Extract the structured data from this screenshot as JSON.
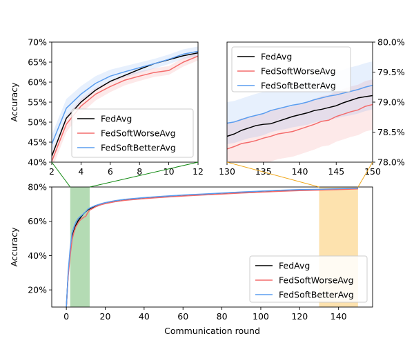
{
  "colors": {
    "fedavg": "#000000",
    "worse": "#f46b6b",
    "better": "#5b9def",
    "worse_band": "#f7b0b0",
    "better_band": "#b9d2f7",
    "green_span": "#b4dbb4",
    "orange_span": "#fde2ae",
    "green_connector": "#138a13",
    "orange_connector": "#f0a81c"
  },
  "chart_data": [
    {
      "id": "zoom-early",
      "type": "line",
      "title": "",
      "xlabel": "",
      "ylabel": "Accuracy",
      "xlim": [
        2,
        12
      ],
      "ylim": [
        40,
        70
      ],
      "xticks": [
        "2",
        "4",
        "6",
        "8",
        "10",
        "12"
      ],
      "yticks": [
        "40%",
        "45%",
        "50%",
        "55%",
        "60%",
        "65%",
        "70%"
      ],
      "legend_position": "lower-right",
      "x": [
        2,
        3,
        4,
        5,
        6,
        7,
        8,
        9,
        10,
        11,
        12
      ],
      "series": [
        {
          "name": "FedAvg",
          "color_key": "fedavg",
          "values": [
            41.5,
            51.0,
            55.0,
            58.0,
            60.2,
            61.7,
            63.2,
            64.6,
            65.6,
            66.6,
            67.3
          ],
          "band": null
        },
        {
          "name": "FedSoftWorseAvg",
          "color_key": "worse",
          "values": [
            40.2,
            49.5,
            54.0,
            57.0,
            58.9,
            60.5,
            61.5,
            62.4,
            62.9,
            65.0,
            66.5
          ],
          "band": [
            2.0,
            2.0,
            1.8,
            1.6,
            1.4,
            1.3,
            1.2,
            1.1,
            1.1,
            1.1,
            1.1
          ]
        },
        {
          "name": "FedSoftBetterAvg",
          "color_key": "better",
          "values": [
            44.5,
            53.5,
            57.0,
            59.7,
            61.5,
            62.6,
            63.6,
            64.6,
            65.7,
            67.0,
            67.7
          ],
          "band": [
            2.3,
            2.3,
            2.0,
            1.8,
            1.6,
            1.4,
            1.3,
            1.2,
            1.2,
            1.2,
            1.2
          ]
        }
      ]
    },
    {
      "id": "zoom-late",
      "type": "line",
      "title": "",
      "xlabel": "",
      "ylabel": "",
      "xlim": [
        130,
        150
      ],
      "ylim": [
        78.0,
        80.0
      ],
      "xticks": [
        "130",
        "135",
        "140",
        "145",
        "150"
      ],
      "yticks": [
        "78.0%",
        "78.5%",
        "79.0%",
        "79.5%",
        "80.0%"
      ],
      "legend_position": "upper-left",
      "x": [
        130,
        131,
        132,
        133,
        134,
        135,
        136,
        137,
        138,
        139,
        140,
        141,
        142,
        143,
        144,
        145,
        146,
        147,
        148,
        149,
        150
      ],
      "series": [
        {
          "name": "FedAvg",
          "color_key": "fedavg",
          "values": [
            78.43,
            78.47,
            78.53,
            78.57,
            78.61,
            78.63,
            78.64,
            78.68,
            78.72,
            78.76,
            78.79,
            78.82,
            78.86,
            78.88,
            78.91,
            78.94,
            78.99,
            79.03,
            79.07,
            79.09,
            79.11
          ],
          "band": null
        },
        {
          "name": "FedSoftWorseAvg",
          "color_key": "worse",
          "values": [
            78.22,
            78.26,
            78.31,
            78.33,
            78.36,
            78.4,
            78.43,
            78.47,
            78.49,
            78.51,
            78.55,
            78.59,
            78.63,
            78.68,
            78.7,
            78.76,
            78.8,
            78.84,
            78.87,
            78.93,
            78.96
          ],
          "band": [
            0.42,
            0.42,
            0.42,
            0.42,
            0.42,
            0.42,
            0.42,
            0.42,
            0.42,
            0.42,
            0.42,
            0.42,
            0.42,
            0.42,
            0.42,
            0.42,
            0.42,
            0.42,
            0.42,
            0.42,
            0.42
          ]
        },
        {
          "name": "FedSoftBetterAvg",
          "color_key": "better",
          "values": [
            78.65,
            78.67,
            78.71,
            78.75,
            78.78,
            78.81,
            78.86,
            78.89,
            78.92,
            78.95,
            78.97,
            79.0,
            79.04,
            79.07,
            79.1,
            79.12,
            79.15,
            79.18,
            79.21,
            79.25,
            79.28
          ],
          "band": [
            0.35,
            0.35,
            0.35,
            0.35,
            0.36,
            0.36,
            0.36,
            0.36,
            0.37,
            0.37,
            0.37,
            0.38,
            0.38,
            0.38,
            0.39,
            0.39,
            0.39,
            0.4,
            0.4,
            0.4,
            0.4
          ]
        }
      ]
    },
    {
      "id": "full",
      "type": "line",
      "title": "",
      "xlabel": "Communication round",
      "ylabel": "Accuracy",
      "xlim": [
        -7.5,
        157.5
      ],
      "ylim": [
        10,
        80
      ],
      "xticks": [
        "0",
        "20",
        "40",
        "60",
        "80",
        "100",
        "120",
        "140"
      ],
      "xtick_values": [
        0,
        20,
        40,
        60,
        80,
        100,
        120,
        140
      ],
      "yticks": [
        "20%",
        "40%",
        "60%",
        "80%"
      ],
      "ytick_values": [
        20,
        40,
        60,
        80
      ],
      "legend_position": "lower-right",
      "highlight_spans": [
        {
          "from": 2,
          "to": 12,
          "color_key": "green_span"
        },
        {
          "from": 130,
          "to": 150,
          "color_key": "orange_span"
        }
      ],
      "x": [
        0,
        1,
        2,
        3,
        4,
        5,
        6,
        7,
        8,
        9,
        10,
        11,
        12,
        15,
        18,
        20,
        25,
        30,
        40,
        50,
        60,
        70,
        80,
        90,
        100,
        110,
        120,
        130,
        140,
        150
      ],
      "series": [
        {
          "name": "FedAvg",
          "color_key": "fedavg",
          "values": [
            10.0,
            30.0,
            41.5,
            51.0,
            55.0,
            58.0,
            60.2,
            61.7,
            63.2,
            64.6,
            65.6,
            66.6,
            67.3,
            68.8,
            70.0,
            70.6,
            71.7,
            72.5,
            73.5,
            74.3,
            75.0,
            75.6,
            76.2,
            76.8,
            77.3,
            77.8,
            78.2,
            78.45,
            78.8,
            79.1
          ],
          "band": null
        },
        {
          "name": "FedSoftWorseAvg",
          "color_key": "worse",
          "values": [
            10.0,
            28.5,
            40.2,
            49.5,
            54.0,
            57.0,
            58.9,
            60.5,
            61.5,
            62.4,
            62.9,
            65.0,
            66.5,
            68.4,
            69.7,
            70.3,
            71.4,
            72.2,
            73.2,
            74.0,
            74.7,
            75.3,
            75.9,
            76.5,
            77.0,
            77.5,
            77.9,
            78.2,
            78.5,
            78.9
          ],
          "band": null
        },
        {
          "name": "FedSoftBetterAvg",
          "color_key": "better",
          "values": [
            10.0,
            31.5,
            44.5,
            53.5,
            57.0,
            59.7,
            61.5,
            62.6,
            63.6,
            64.6,
            65.7,
            67.0,
            67.7,
            69.2,
            70.3,
            70.9,
            72.0,
            72.8,
            73.8,
            74.6,
            75.3,
            75.9,
            76.5,
            77.1,
            77.6,
            78.1,
            78.5,
            78.65,
            79.0,
            79.3
          ],
          "band": null
        }
      ]
    }
  ]
}
